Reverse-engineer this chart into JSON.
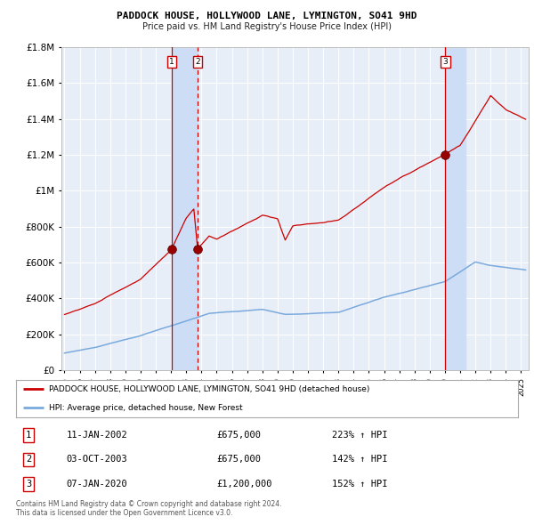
{
  "title": "PADDOCK HOUSE, HOLLYWOOD LANE, LYMINGTON, SO41 9HD",
  "subtitle": "Price paid vs. HM Land Registry's House Price Index (HPI)",
  "background_color": "#ffffff",
  "plot_bg_color": "#e8eef8",
  "grid_color": "#ffffff",
  "sale1_date_num": 2002.03,
  "sale1_price": 675000,
  "sale2_date_num": 2003.75,
  "sale2_price": 675000,
  "sale3_date_num": 2020.03,
  "sale3_price": 1200000,
  "red_line_color": "#cc0000",
  "blue_line_color": "#7aaadd",
  "shade_color": "#ccddf5",
  "ylim": [
    0,
    1800000
  ],
  "xlim": [
    1994.8,
    2025.5
  ],
  "legend_red_label": "PADDOCK HOUSE, HOLLYWOOD LANE, LYMINGTON, SO41 9HD (detached house)",
  "legend_blue_label": "HPI: Average price, detached house, New Forest",
  "table_rows": [
    [
      "1",
      "11-JAN-2002",
      "£675,000",
      "223% ↑ HPI"
    ],
    [
      "2",
      "03-OCT-2003",
      "£675,000",
      "142% ↑ HPI"
    ],
    [
      "3",
      "07-JAN-2020",
      "£1,200,000",
      "152% ↑ HPI"
    ]
  ],
  "footer": "Contains HM Land Registry data © Crown copyright and database right 2024.\nThis data is licensed under the Open Government Licence v3.0."
}
